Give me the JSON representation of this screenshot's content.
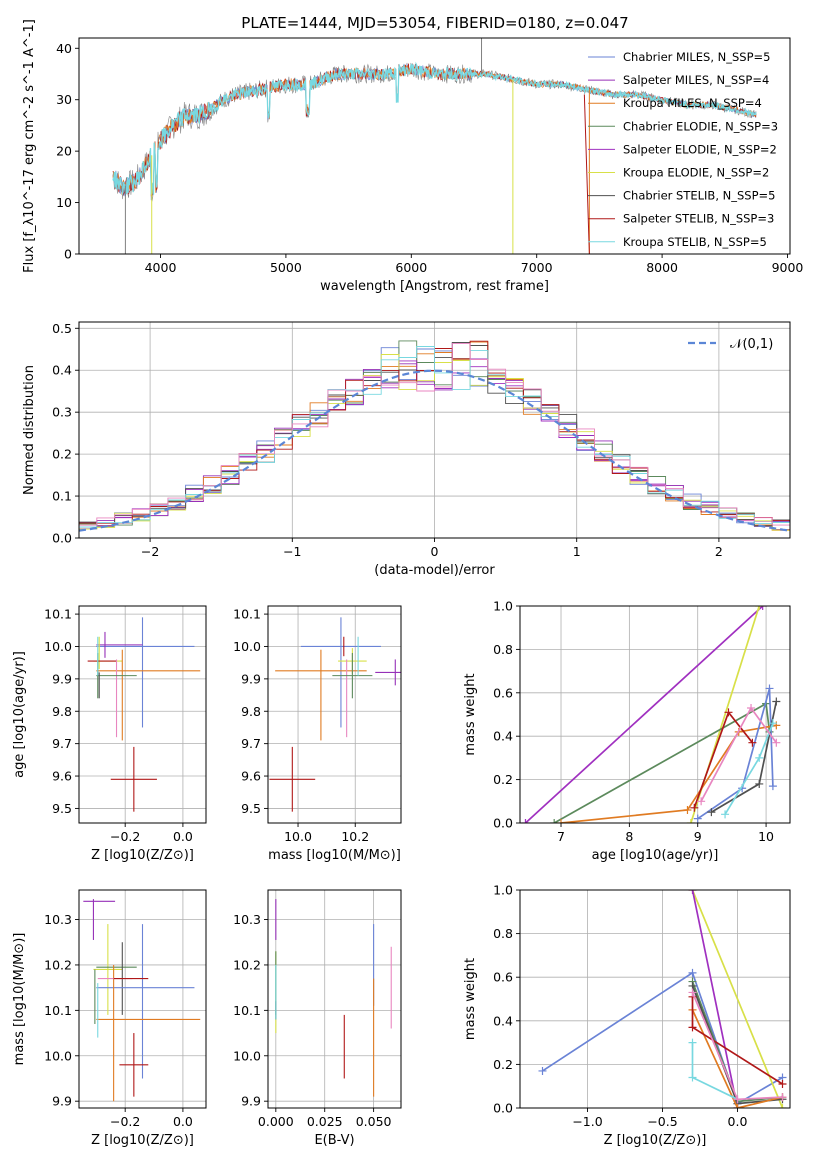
{
  "colors": {
    "chabrier_miles": "#6a83d6",
    "salpeter_miles": "#9630b8",
    "kroupa_miles": "#e07b22",
    "chabrier_elodie": "#5c8a5c",
    "salpeter_elodie": "#a030c0",
    "kroupa_elodie": "#d8e048",
    "chabrier_stelib": "#505050",
    "salpeter_stelib": "#b01818",
    "kroupa_stelib": "#78d8e0",
    "pink": "#e886c0",
    "gaussian": "#5b86d6",
    "grid": "#b0b0b0"
  },
  "chart_data": [
    {
      "id": "spectrum",
      "type": "line",
      "title": "PLATE=1444, MJD=53054, FIBERID=0180, z=0.047",
      "xlabel": "wavelength [Angstrom, rest frame]",
      "ylabel": "Flux [f_λ10^-17 erg cm^-2 s^-1 A^-1]",
      "xlim": [
        3350,
        9020
      ],
      "ylim": [
        0,
        42
      ],
      "xticks": [
        "4000",
        "5000",
        "6000",
        "7000",
        "8000",
        "9000"
      ],
      "yticks": [
        "0",
        "10",
        "20",
        "30",
        "40"
      ],
      "legend": [
        {
          "label": "Chabrier MILES, N_SSP=5",
          "color": "#6a83d6"
        },
        {
          "label": "Salpeter MILES, N_SSP=4",
          "color": "#9630b8"
        },
        {
          "label": "Kroupa MILES, N_SSP=4",
          "color": "#e07b22"
        },
        {
          "label": "Chabrier ELODIE, N_SSP=3",
          "color": "#5c8a5c"
        },
        {
          "label": "Salpeter ELODIE, N_SSP=2",
          "color": "#a030c0"
        },
        {
          "label": "Kroupa ELODIE, N_SSP=2",
          "color": "#d8e048"
        },
        {
          "label": "Chabrier STELIB, N_SSP=5",
          "color": "#505050"
        },
        {
          "label": "Salpeter STELIB, N_SSP=3",
          "color": "#b01818"
        },
        {
          "label": "Kroupa STELIB, N_SSP=5",
          "color": "#78d8e0"
        }
      ],
      "continuum": [
        [
          3620,
          15
        ],
        [
          3700,
          13
        ],
        [
          3800,
          14
        ],
        [
          3900,
          18
        ],
        [
          4000,
          22
        ],
        [
          4100,
          25
        ],
        [
          4200,
          27
        ],
        [
          4300,
          27
        ],
        [
          4400,
          28
        ],
        [
          4500,
          30
        ],
        [
          4600,
          31
        ],
        [
          4800,
          32
        ],
        [
          5000,
          33
        ],
        [
          5200,
          33
        ],
        [
          5400,
          35
        ],
        [
          5600,
          35
        ],
        [
          5800,
          35
        ],
        [
          6000,
          36
        ],
        [
          6200,
          35
        ],
        [
          6400,
          35
        ],
        [
          6600,
          35
        ],
        [
          6800,
          34
        ],
        [
          7000,
          33
        ],
        [
          7200,
          33
        ],
        [
          7400,
          32
        ],
        [
          7600,
          31
        ],
        [
          7800,
          31
        ],
        [
          8000,
          30
        ],
        [
          8200,
          29
        ],
        [
          8400,
          29
        ],
        [
          8600,
          28
        ],
        [
          8750,
          27
        ]
      ],
      "dips": [
        [
          3720,
          0,
          "#808080"
        ],
        [
          3930,
          0,
          "#d8e048"
        ],
        [
          3690,
          12,
          "#808080"
        ],
        [
          6810,
          0,
          "#d8e048"
        ],
        [
          7420,
          0,
          "#e07b22"
        ],
        [
          6560,
          42,
          "#808080"
        ]
      ]
    },
    {
      "id": "residuals",
      "type": "histogram",
      "xlabel": "(data-model)/error",
      "ylabel": "Normed distribution",
      "xlim": [
        -2.5,
        2.5
      ],
      "ylim": [
        0,
        0.515
      ],
      "xticks": [
        "-2",
        "-1",
        "0",
        "1",
        "2"
      ],
      "yticks": [
        "0.0",
        "0.1",
        "0.2",
        "0.3",
        "0.4",
        "0.5"
      ],
      "bins": 40,
      "legend": {
        "label": "𝒩(0,1)"
      }
    },
    {
      "id": "z-age",
      "type": "errorbar",
      "xlabel": "Z [log10(Z/Z⊙)]",
      "ylabel": "age  [log10(age/yr)]",
      "xlim": [
        -0.36,
        0.08
      ],
      "ylim": [
        9.455,
        10.125
      ],
      "xticks": [
        "-0.2",
        "0.0"
      ],
      "yticks": [
        "9.5",
        "9.6",
        "9.7",
        "9.8",
        "9.9",
        "10.0",
        "10.1"
      ],
      "points": [
        {
          "color": "#6a83d6",
          "x": -0.13,
          "y": 10.0,
          "xerr": 0.17,
          "yerr": 0.0
        },
        {
          "color": "#6a83d6",
          "x": -0.14,
          "y": 9.92,
          "xerr": 0.0,
          "yerr": 0.17
        },
        {
          "color": "#9630b8",
          "x": -0.22,
          "y": 10.005,
          "xerr": 0.08,
          "yerr": 0.0
        },
        {
          "color": "#9630b8",
          "x": -0.27,
          "y": 10.005,
          "xerr": 0.0,
          "yerr": 0.04
        },
        {
          "color": "#d8e048",
          "x": -0.26,
          "y": 9.955,
          "xerr": 0.05,
          "yerr": 0.0
        },
        {
          "color": "#d8e048",
          "x": -0.29,
          "y": 9.98,
          "xerr": 0.0,
          "yerr": 0.05
        },
        {
          "color": "#b01818",
          "x": -0.28,
          "y": 9.955,
          "xerr": 0.05,
          "yerr": 0.0
        },
        {
          "color": "#e07b22",
          "x": -0.12,
          "y": 9.925,
          "xerr": 0.18,
          "yerr": 0.0
        },
        {
          "color": "#e07b22",
          "x": -0.21,
          "y": 9.85,
          "xerr": 0.0,
          "yerr": 0.14
        },
        {
          "color": "#e886c0",
          "x": -0.23,
          "y": 9.84,
          "xerr": 0.0,
          "yerr": 0.12
        },
        {
          "color": "#5c8a5c",
          "x": -0.23,
          "y": 9.91,
          "xerr": 0.07,
          "yerr": 0.0
        },
        {
          "color": "#5c8a5c",
          "x": -0.295,
          "y": 9.91,
          "xerr": 0.0,
          "yerr": 0.07
        },
        {
          "color": "#78d8e0",
          "x": -0.295,
          "y": 9.97,
          "xerr": 0.0,
          "yerr": 0.06
        },
        {
          "color": "#b01818",
          "x": -0.17,
          "y": 9.59,
          "xerr": 0.08,
          "yerr": 0.1
        },
        {
          "color": "#505050",
          "x": -0.29,
          "y": 9.88,
          "xerr": 0.0,
          "yerr": 0.04
        }
      ]
    },
    {
      "id": "mass-age",
      "type": "errorbar",
      "xlabel": "mass [log10(M/M⊙)]",
      "ylabel": "",
      "xlim": [
        9.895,
        10.36
      ],
      "ylim": [
        9.455,
        10.125
      ],
      "xticks": [
        "10.0",
        "10.2"
      ],
      "yticks": [
        "9.5",
        "9.6",
        "9.7",
        "9.8",
        "9.9",
        "10.0",
        "10.1"
      ],
      "points": [
        {
          "color": "#6a83d6",
          "x": 10.15,
          "y": 10.0,
          "xerr": 0.14,
          "yerr": 0.0
        },
        {
          "color": "#6a83d6",
          "x": 10.15,
          "y": 9.92,
          "xerr": 0.0,
          "yerr": 0.17
        },
        {
          "color": "#9630b8",
          "x": 10.34,
          "y": 9.92,
          "xerr": 0.07,
          "yerr": 0.04
        },
        {
          "color": "#d8e048",
          "x": 10.19,
          "y": 9.955,
          "xerr": 0.05,
          "yerr": 0.04
        },
        {
          "color": "#e07b22",
          "x": 10.08,
          "y": 9.925,
          "xerr": 0.16,
          "yerr": 0.0
        },
        {
          "color": "#e07b22",
          "x": 10.08,
          "y": 9.85,
          "xerr": 0.0,
          "yerr": 0.14
        },
        {
          "color": "#e886c0",
          "x": 10.17,
          "y": 9.84,
          "xerr": 0.0,
          "yerr": 0.12
        },
        {
          "color": "#5c8a5c",
          "x": 10.19,
          "y": 9.91,
          "xerr": 0.07,
          "yerr": 0.07
        },
        {
          "color": "#b01818",
          "x": 10.16,
          "y": 10.0,
          "xerr": 0.0,
          "yerr": 0.03
        },
        {
          "color": "#b01818",
          "x": 9.98,
          "y": 9.59,
          "xerr": 0.08,
          "yerr": 0.1
        },
        {
          "color": "#78d8e0",
          "x": 10.21,
          "y": 9.97,
          "xerr": 0.0,
          "yerr": 0.06
        }
      ]
    },
    {
      "id": "age-weight",
      "type": "line",
      "xlabel": "age  [log10(age/yr)]",
      "ylabel": "mass weight",
      "xlim": [
        6.4,
        10.35
      ],
      "ylim": [
        0,
        1.0
      ],
      "xticks": [
        "7",
        "8",
        "9",
        "10"
      ],
      "yticks": [
        "0.0",
        "0.2",
        "0.4",
        "0.6",
        "0.8",
        "1.0"
      ],
      "series": [
        {
          "color": "#a030c0",
          "points": [
            [
              6.48,
              0.0
            ],
            [
              9.95,
              1.0
            ]
          ]
        },
        {
          "color": "#d8e048",
          "points": [
            [
              8.9,
              0.0
            ],
            [
              9.9,
              1.0
            ]
          ]
        },
        {
          "color": "#5c8a5c",
          "points": [
            [
              6.9,
              0.0
            ],
            [
              10.0,
              0.55
            ],
            [
              10.05,
              0.42
            ]
          ]
        },
        {
          "color": "#e07b22",
          "points": [
            [
              7.0,
              0.0
            ],
            [
              8.85,
              0.06
            ],
            [
              9.6,
              0.42
            ],
            [
              10.15,
              0.45
            ]
          ]
        },
        {
          "color": "#6a83d6",
          "points": [
            [
              9.0,
              0.02
            ],
            [
              9.65,
              0.16
            ],
            [
              10.05,
              0.62
            ],
            [
              10.1,
              0.17
            ]
          ]
        },
        {
          "color": "#b01818",
          "points": [
            [
              8.95,
              0.07
            ],
            [
              9.45,
              0.51
            ],
            [
              9.8,
              0.37
            ]
          ]
        },
        {
          "color": "#505050",
          "points": [
            [
              9.2,
              0.05
            ],
            [
              9.9,
              0.18
            ],
            [
              10.15,
              0.56
            ]
          ]
        },
        {
          "color": "#78d8e0",
          "points": [
            [
              9.4,
              0.04
            ],
            [
              9.9,
              0.3
            ],
            [
              10.1,
              0.46
            ]
          ]
        },
        {
          "color": "#e886c0",
          "points": [
            [
              9.05,
              0.1
            ],
            [
              9.78,
              0.53
            ],
            [
              10.15,
              0.37
            ]
          ]
        }
      ]
    },
    {
      "id": "z-mass",
      "type": "errorbar",
      "xlabel": "Z [log10(Z/Z⊙)]",
      "ylabel": "mass [log10(M/M⊙)]",
      "xlim": [
        -0.36,
        0.08
      ],
      "ylim": [
        9.885,
        10.365
      ],
      "xticks": [
        "-0.2",
        "0.0"
      ],
      "yticks": [
        "9.9",
        "10.0",
        "10.1",
        "10.2",
        "10.3"
      ],
      "points": [
        {
          "color": "#9630b8",
          "x": -0.29,
          "y": 10.34,
          "xerr": 0.055,
          "yerr": 0.0
        },
        {
          "color": "#9630b8",
          "x": -0.31,
          "y": 10.3,
          "xerr": 0.0,
          "yerr": 0.045
        },
        {
          "color": "#d8e048",
          "x": -0.26,
          "y": 10.19,
          "xerr": 0.05,
          "yerr": 0.1
        },
        {
          "color": "#5c8a5c",
          "x": -0.23,
          "y": 10.195,
          "xerr": 0.07,
          "yerr": 0.0
        },
        {
          "color": "#5c8a5c",
          "x": -0.305,
          "y": 10.13,
          "xerr": 0.0,
          "yerr": 0.06
        },
        {
          "color": "#505050",
          "x": -0.21,
          "y": 10.17,
          "xerr": 0.0,
          "yerr": 0.08
        },
        {
          "color": "#6a83d6",
          "x": -0.13,
          "y": 10.15,
          "xerr": 0.17,
          "yerr": 0.0
        },
        {
          "color": "#6a83d6",
          "x": -0.14,
          "y": 10.12,
          "xerr": 0.0,
          "yerr": 0.17
        },
        {
          "color": "#e07b22",
          "x": -0.12,
          "y": 10.08,
          "xerr": 0.18,
          "yerr": 0.0
        },
        {
          "color": "#e07b22",
          "x": -0.24,
          "y": 10.05,
          "xerr": 0.0,
          "yerr": 0.15
        },
        {
          "color": "#e886c0",
          "x": -0.235,
          "y": 10.17,
          "xerr": 0.06,
          "yerr": 0.0
        },
        {
          "color": "#b01818",
          "x": -0.18,
          "y": 10.17,
          "xerr": 0.06,
          "yerr": 0.0
        },
        {
          "color": "#b01818",
          "x": -0.17,
          "y": 9.98,
          "xerr": 0.05,
          "yerr": 0.07
        },
        {
          "color": "#78d8e0",
          "x": -0.295,
          "y": 10.1,
          "xerr": 0.0,
          "yerr": 0.06
        }
      ]
    },
    {
      "id": "ebv-mass",
      "type": "errorbar",
      "xlabel": "E(B-V)",
      "ylabel": "",
      "xlim": [
        -0.004,
        0.064
      ],
      "ylim": [
        9.885,
        10.365
      ],
      "xticks": [
        "0.000",
        "0.025",
        "0.050"
      ],
      "yticks": [
        "9.9",
        "10.0",
        "10.1",
        "10.2",
        "10.3"
      ],
      "points": [
        {
          "color": "#9630b8",
          "x": 0.0,
          "y": 10.3,
          "xerr": 0.0,
          "yerr": 0.045
        },
        {
          "color": "#d8e048",
          "x": 0.0,
          "y": 10.14,
          "xerr": 0.0,
          "yerr": 0.09
        },
        {
          "color": "#5c8a5c",
          "x": 0.0,
          "y": 10.16,
          "xerr": 0.0,
          "yerr": 0.07
        },
        {
          "color": "#505050",
          "x": 0.0,
          "y": 10.1,
          "xerr": 0.0,
          "yerr": 0.02
        },
        {
          "color": "#78d8e0",
          "x": 0.0,
          "y": 10.14,
          "xerr": 0.0,
          "yerr": 0.06
        },
        {
          "color": "#6a83d6",
          "x": 0.05,
          "y": 10.2,
          "xerr": 0.0,
          "yerr": 0.09
        },
        {
          "color": "#e07b22",
          "x": 0.05,
          "y": 10.04,
          "xerr": 0.0,
          "yerr": 0.13
        },
        {
          "color": "#b01818",
          "x": 0.035,
          "y": 10.02,
          "xerr": 0.0,
          "yerr": 0.07
        },
        {
          "color": "#e886c0",
          "x": 0.059,
          "y": 10.15,
          "xerr": 0.0,
          "yerr": 0.09
        }
      ]
    },
    {
      "id": "z-weight",
      "type": "line",
      "xlabel": "Z [log10(Z/Z⊙)]",
      "ylabel": "mass weight",
      "xlim": [
        -1.45,
        0.35
      ],
      "ylim": [
        0,
        1.0
      ],
      "xticks": [
        "-1.0",
        "-0.5",
        "0.0"
      ],
      "yticks": [
        "0.0",
        "0.2",
        "0.4",
        "0.6",
        "0.8",
        "1.0"
      ],
      "series": [
        {
          "color": "#6a83d6",
          "points": [
            [
              -1.3,
              0.17
            ],
            [
              -0.3,
              0.62
            ],
            [
              0.0,
              0.02
            ],
            [
              0.3,
              0.14
            ]
          ]
        },
        {
          "color": "#d8e048",
          "points": [
            [
              -0.3,
              1.0
            ],
            [
              0.3,
              0.0
            ]
          ]
        },
        {
          "color": "#a030c0",
          "points": [
            [
              -0.3,
              1.0
            ],
            [
              0.0,
              0.0
            ]
          ]
        },
        {
          "color": "#5c8a5c",
          "points": [
            [
              -0.3,
              0.58
            ],
            [
              0.0,
              0.03
            ],
            [
              0.3,
              0.05
            ]
          ]
        },
        {
          "color": "#505050",
          "points": [
            [
              -0.3,
              0.56
            ],
            [
              0.0,
              0.02
            ],
            [
              0.3,
              0.04
            ]
          ]
        },
        {
          "color": "#e07b22",
          "points": [
            [
              -0.3,
              0.45
            ],
            [
              0.0,
              0.0
            ],
            [
              0.3,
              0.05
            ]
          ]
        },
        {
          "color": "#b01818",
          "points": [
            [
              -0.3,
              0.51
            ],
            [
              -0.3,
              0.37
            ],
            [
              0.3,
              0.11
            ]
          ]
        },
        {
          "color": "#78d8e0",
          "points": [
            [
              -0.3,
              0.3
            ],
            [
              -0.3,
              0.14
            ],
            [
              0.0,
              0.04
            ]
          ]
        },
        {
          "color": "#e886c0",
          "points": [
            [
              -0.3,
              0.53
            ],
            [
              0.0,
              0.04
            ],
            [
              0.3,
              0.05
            ]
          ]
        }
      ]
    }
  ]
}
